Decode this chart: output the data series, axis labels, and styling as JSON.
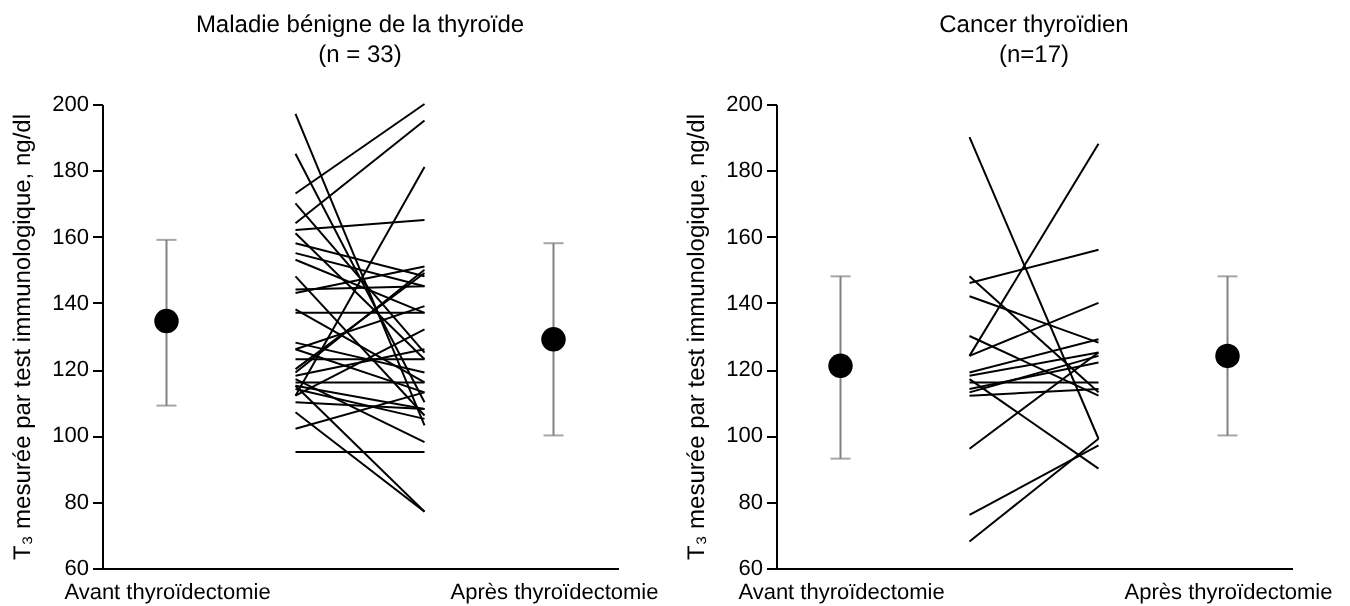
{
  "chart_data": [
    {
      "type": "line",
      "title": "Maladie bénigne de la thyroïde",
      "subtitle": "(n = 33)",
      "ylabel": "T₃ mesurée par test immunologique, ng/dl",
      "categories": [
        "Avant thyroïdectomie",
        null,
        null,
        "Après thyroïdectomie"
      ],
      "ylim": [
        60,
        200
      ],
      "yticks": [
        60,
        80,
        100,
        120,
        140,
        160,
        180,
        200
      ],
      "series": [
        {
          "color": "#000000",
          "values": [
            null,
            173,
            200,
            null
          ]
        },
        {
          "color": "#000000",
          "values": [
            null,
            164,
            195,
            null
          ]
        },
        {
          "color": "#000000",
          "values": [
            null,
            197,
            103,
            null
          ]
        },
        {
          "color": "#000000",
          "values": [
            null,
            185,
            110,
            null
          ]
        },
        {
          "color": "#000000",
          "values": [
            null,
            170,
            125,
            null
          ]
        },
        {
          "color": "#000000",
          "values": [
            null,
            162,
            165,
            null
          ]
        },
        {
          "color": "#000000",
          "values": [
            null,
            158,
            148,
            null
          ]
        },
        {
          "color": "#000000",
          "values": [
            null,
            155,
            145,
            null
          ]
        },
        {
          "color": "#000000",
          "values": [
            null,
            148,
            106,
            null
          ]
        },
        {
          "color": "#000000",
          "values": [
            null,
            144,
            145,
            null
          ]
        },
        {
          "color": "#000000",
          "values": [
            null,
            143,
            151,
            null
          ]
        },
        {
          "color": "#000000",
          "values": [
            null,
            138,
            116,
            null
          ]
        },
        {
          "color": "#000000",
          "values": [
            null,
            137,
            137,
            null
          ]
        },
        {
          "color": "#000000",
          "values": [
            null,
            128,
            119,
            null
          ]
        },
        {
          "color": "#000000",
          "values": [
            null,
            126,
            139,
            null
          ]
        },
        {
          "color": "#000000",
          "values": [
            null,
            123,
            123,
            null
          ]
        },
        {
          "color": "#000000",
          "values": [
            null,
            119,
            150,
            null
          ]
        },
        {
          "color": "#000000",
          "values": [
            null,
            112,
            181,
            null
          ]
        },
        {
          "color": "#000000",
          "values": [
            null,
            116,
            116,
            null
          ]
        },
        {
          "color": "#000000",
          "values": [
            null,
            114,
            105,
            null
          ]
        },
        {
          "color": "#000000",
          "values": [
            null,
            112,
            132,
            null
          ]
        },
        {
          "color": "#000000",
          "values": [
            null,
            110,
            108,
            null
          ]
        },
        {
          "color": "#000000",
          "values": [
            null,
            107,
            77,
            null
          ]
        },
        {
          "color": "#000000",
          "values": [
            null,
            115,
            77,
            null
          ]
        },
        {
          "color": "#000000",
          "values": [
            null,
            102,
            113,
            null
          ]
        },
        {
          "color": "#000000",
          "values": [
            null,
            95,
            95,
            null
          ]
        },
        {
          "color": "#000000",
          "values": [
            null,
            120,
            149,
            null
          ]
        },
        {
          "color": "#000000",
          "values": [
            null,
            117,
            98,
            null
          ]
        },
        {
          "color": "#000000",
          "values": [
            null,
            115,
            108,
            null
          ]
        },
        {
          "color": "#000000",
          "values": [
            null,
            118,
            126,
            null
          ]
        },
        {
          "color": "#000000",
          "values": [
            null,
            153,
            137,
            null
          ]
        },
        {
          "color": "#000000",
          "values": [
            null,
            161,
            123,
            null
          ]
        },
        {
          "color": "#000000",
          "values": [
            null,
            126,
            113,
            null
          ]
        },
        {
          "type": "scatter",
          "marker": "circle",
          "color": "#000000",
          "values": [
            134.5,
            null,
            null,
            129
          ],
          "errors": [
            [
              109,
              159
            ],
            null,
            null,
            [
              100,
              158
            ]
          ]
        }
      ]
    },
    {
      "type": "line",
      "title": "Cancer thyroïdien",
      "subtitle": "(n=17)",
      "ylabel": "T₃ mesurée par test immunologique, ng/dl",
      "categories": [
        "Avant thyroïdectomie",
        null,
        null,
        "Après thyroïdectomie"
      ],
      "ylim": [
        60,
        200
      ],
      "yticks": [
        60,
        80,
        100,
        120,
        140,
        160,
        180,
        200
      ],
      "series": [
        {
          "color": "#000000",
          "values": [
            null,
            190,
            99,
            null
          ]
        },
        {
          "color": "#000000",
          "values": [
            null,
            124,
            188,
            null
          ]
        },
        {
          "color": "#000000",
          "values": [
            null,
            146,
            156,
            null
          ]
        },
        {
          "color": "#000000",
          "values": [
            null,
            148,
            113,
            null
          ]
        },
        {
          "color": "#000000",
          "values": [
            null,
            142,
            128,
            null
          ]
        },
        {
          "color": "#000000",
          "values": [
            null,
            130,
            112,
            null
          ]
        },
        {
          "color": "#000000",
          "values": [
            null,
            124,
            140,
            null
          ]
        },
        {
          "color": "#000000",
          "values": [
            null,
            119,
            129,
            null
          ]
        },
        {
          "color": "#000000",
          "values": [
            null,
            118,
            125,
            null
          ]
        },
        {
          "color": "#000000",
          "values": [
            null,
            116,
            116,
            null
          ]
        },
        {
          "color": "#000000",
          "values": [
            null,
            114,
            122,
            null
          ]
        },
        {
          "color": "#000000",
          "values": [
            null,
            113,
            124,
            null
          ]
        },
        {
          "color": "#000000",
          "values": [
            null,
            112,
            114,
            null
          ]
        },
        {
          "color": "#000000",
          "values": [
            null,
            117,
            90,
            null
          ]
        },
        {
          "color": "#000000",
          "values": [
            null,
            96,
            125,
            null
          ]
        },
        {
          "color": "#000000",
          "values": [
            null,
            76,
            97,
            null
          ]
        },
        {
          "color": "#000000",
          "values": [
            null,
            68,
            99,
            null
          ]
        },
        {
          "type": "scatter",
          "marker": "circle",
          "color": "#000000",
          "values": [
            121,
            null,
            null,
            124
          ],
          "errors": [
            [
              93,
              148
            ],
            null,
            null,
            [
              100,
              148
            ]
          ]
        }
      ]
    }
  ]
}
